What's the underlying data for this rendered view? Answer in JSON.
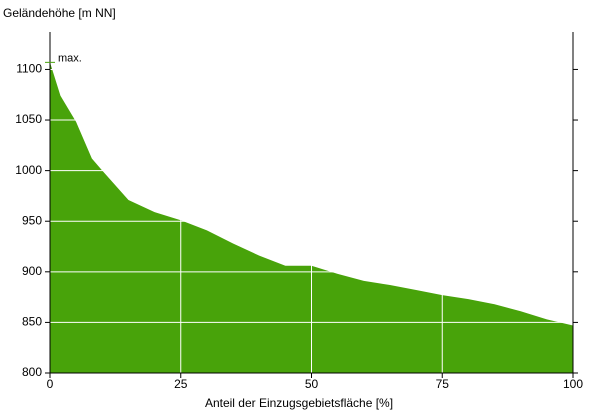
{
  "chart_data": {
    "type": "area",
    "y_label": "Geländehöhe [m NN]",
    "x_label": "Anteil der Einzugsgebietsfläche [%]",
    "annotation": "max.",
    "x": [
      0,
      2,
      5,
      8,
      10,
      15,
      20,
      25,
      30,
      35,
      40,
      45,
      50,
      55,
      60,
      65,
      70,
      75,
      80,
      85,
      90,
      95,
      100
    ],
    "values": [
      1107,
      1074,
      1048,
      1012,
      1000,
      971,
      959,
      951,
      941,
      928,
      916,
      906,
      906,
      898,
      891,
      887,
      882,
      877,
      873,
      868,
      861,
      853,
      847
    ],
    "color": "#48a30a",
    "xlim": [
      0,
      100
    ],
    "xticks": [
      0,
      25,
      50,
      75,
      100
    ],
    "ylim": [
      800,
      1137
    ],
    "yticks": [
      800,
      850,
      900,
      950,
      1000,
      1050,
      1100
    ],
    "grid": true
  }
}
